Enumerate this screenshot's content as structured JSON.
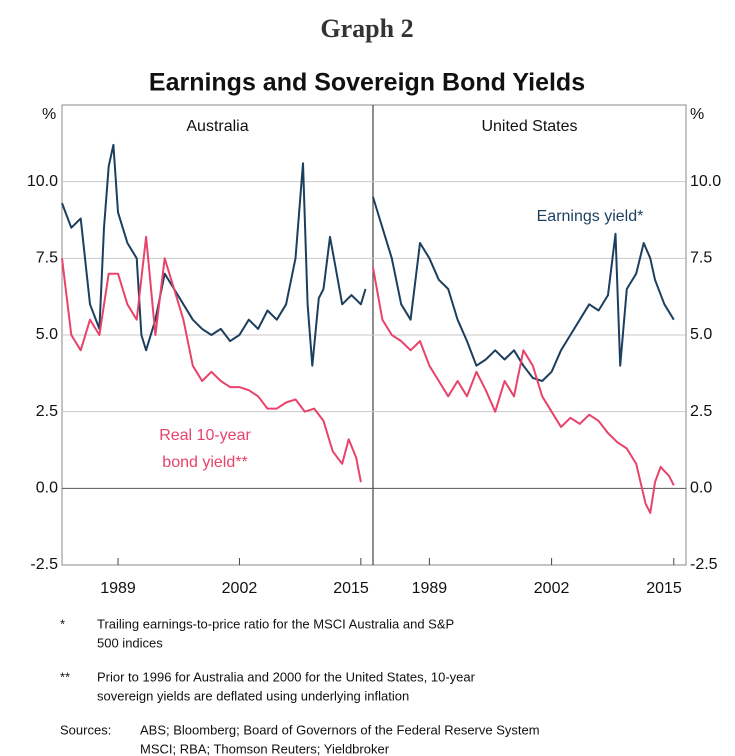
{
  "header": {
    "graph": "Graph 2",
    "title": "Earnings and Sovereign Bond Yields"
  },
  "chart_data": [
    {
      "type": "line",
      "title": "Australia",
      "ylabel": "%",
      "ytick_side": "left",
      "xlim": [
        1983,
        2016.3
      ],
      "xticks": [
        1989,
        2002,
        2015
      ],
      "ylim": [
        -2.5,
        12.5
      ],
      "yticks": [
        {
          "value": -2.5,
          "label": "-2.5"
        },
        {
          "value": 0,
          "label": "0.0"
        },
        {
          "value": 2.5,
          "label": "2.5"
        },
        {
          "value": 5,
          "label": "5.0"
        },
        {
          "value": 7.5,
          "label": "7.5"
        },
        {
          "value": 10,
          "label": "10.0"
        }
      ],
      "grid": true,
      "series": [
        {
          "color": "#1d3f5e",
          "x": [
            1983,
            1984,
            1985,
            1986,
            1987,
            1987.5,
            1988,
            1988.5,
            1989,
            1990,
            1991,
            1991.5,
            1992,
            1993,
            1994,
            1995,
            1996,
            1997,
            1998,
            1999,
            2000,
            2001,
            2002,
            2003,
            2004,
            2005,
            2006,
            2007,
            2008,
            2008.8,
            2009.3,
            2009.8,
            2010.5,
            2011,
            2011.7,
            2012.3,
            2013,
            2014,
            2015,
            2015.5
          ],
          "values": [
            9.3,
            8.5,
            8.8,
            6.0,
            5.2,
            8.5,
            10.5,
            11.2,
            9.0,
            8.0,
            7.5,
            5.0,
            4.5,
            5.5,
            7.0,
            6.5,
            6.0,
            5.5,
            5.2,
            5.0,
            5.2,
            4.8,
            5.0,
            5.5,
            5.2,
            5.8,
            5.5,
            6.0,
            7.5,
            10.6,
            6.0,
            4.0,
            6.2,
            6.5,
            8.2,
            7.2,
            6.0,
            6.3,
            6.0,
            6.5
          ]
        },
        {
          "color": "#e8436a",
          "x": [
            1983,
            1984,
            1985,
            1986,
            1987,
            1988,
            1989,
            1990,
            1991,
            1992,
            1993,
            1994,
            1995,
            1996,
            1997,
            1998,
            1999,
            2000,
            2001,
            2002,
            2003,
            2004,
            2005,
            2006,
            2007,
            2008,
            2009,
            2010,
            2011,
            2012,
            2013,
            2013.7,
            2014.5,
            2015
          ],
          "values": [
            7.5,
            5.0,
            4.5,
            5.5,
            5.0,
            7.0,
            7.0,
            6.0,
            5.5,
            8.2,
            5.0,
            7.5,
            6.5,
            5.5,
            4.0,
            3.5,
            3.8,
            3.5,
            3.3,
            3.3,
            3.2,
            3.0,
            2.6,
            2.6,
            2.8,
            2.9,
            2.5,
            2.6,
            2.2,
            1.2,
            0.8,
            1.6,
            1.0,
            0.2
          ]
        }
      ],
      "annotations": [
        {
          "series": 1,
          "lines": [
            "Real 10-year",
            "bond yield**"
          ]
        }
      ]
    },
    {
      "type": "line",
      "title": "United States",
      "ylabel": "%",
      "ytick_side": "right",
      "xlim": [
        1983,
        2016.3
      ],
      "xticks": [
        1989,
        2002,
        2015
      ],
      "ylim": [
        -2.5,
        12.5
      ],
      "yticks": [
        {
          "value": -2.5,
          "label": "-2.5"
        },
        {
          "value": 0,
          "label": "0.0"
        },
        {
          "value": 2.5,
          "label": "2.5"
        },
        {
          "value": 5,
          "label": "5.0"
        },
        {
          "value": 7.5,
          "label": "7.5"
        },
        {
          "value": 10,
          "label": "10.0"
        }
      ],
      "grid": true,
      "series": [
        {
          "color": "#1d3f5e",
          "x": [
            1983,
            1984,
            1985,
            1986,
            1987,
            1988,
            1989,
            1990,
            1991,
            1992,
            1993,
            1994,
            1995,
            1996,
            1997,
            1998,
            1999,
            2000,
            2001,
            2002,
            2003,
            2004,
            2005,
            2006,
            2007,
            2008,
            2008.8,
            2009.3,
            2010,
            2011,
            2011.8,
            2012.5,
            2013,
            2014,
            2015
          ],
          "values": [
            9.5,
            8.5,
            7.5,
            6.0,
            5.5,
            8.0,
            7.5,
            6.8,
            6.5,
            5.5,
            4.8,
            4.0,
            4.2,
            4.5,
            4.2,
            4.5,
            4.0,
            3.6,
            3.5,
            3.8,
            4.5,
            5.0,
            5.5,
            6.0,
            5.8,
            6.3,
            8.3,
            4.0,
            6.5,
            7.0,
            8.0,
            7.5,
            6.8,
            6.0,
            5.5
          ]
        },
        {
          "color": "#e8436a",
          "x": [
            1983,
            1984,
            1985,
            1986,
            1987,
            1988,
            1989,
            1990,
            1991,
            1992,
            1993,
            1994,
            1995,
            1996,
            1997,
            1998,
            1999,
            2000,
            2001,
            2002,
            2003,
            2004,
            2005,
            2006,
            2007,
            2008,
            2009,
            2010,
            2011,
            2012,
            2012.5,
            2013,
            2013.6,
            2014.5,
            2015
          ],
          "values": [
            7.2,
            5.5,
            5.0,
            4.8,
            4.5,
            4.8,
            4.0,
            3.5,
            3.0,
            3.5,
            3.0,
            3.8,
            3.2,
            2.5,
            3.5,
            3.0,
            4.5,
            4.0,
            3.0,
            2.5,
            2.0,
            2.3,
            2.1,
            2.4,
            2.2,
            1.8,
            1.5,
            1.3,
            0.8,
            -0.5,
            -0.8,
            0.2,
            0.7,
            0.4,
            0.1
          ]
        }
      ],
      "annotations": [
        {
          "series": 0,
          "lines": [
            "Earnings yield*"
          ]
        }
      ]
    }
  ],
  "footnotes": [
    {
      "marker": "*",
      "lines": [
        "Trailing earnings-to-price ratio for the MSCI Australia and S&P",
        "500 indices"
      ]
    },
    {
      "marker": "**",
      "lines": [
        "Prior to 1996 for Australia and 2000 for the United States, 10-year",
        "sovereign yields are deflated using underlying inflation"
      ]
    }
  ],
  "sources": {
    "label": "Sources:",
    "lines": [
      "ABS; Bloomberg; Board of Governors of the Federal Reserve System",
      "MSCI; RBA; Thomson Reuters; Yieldbroker"
    ]
  }
}
